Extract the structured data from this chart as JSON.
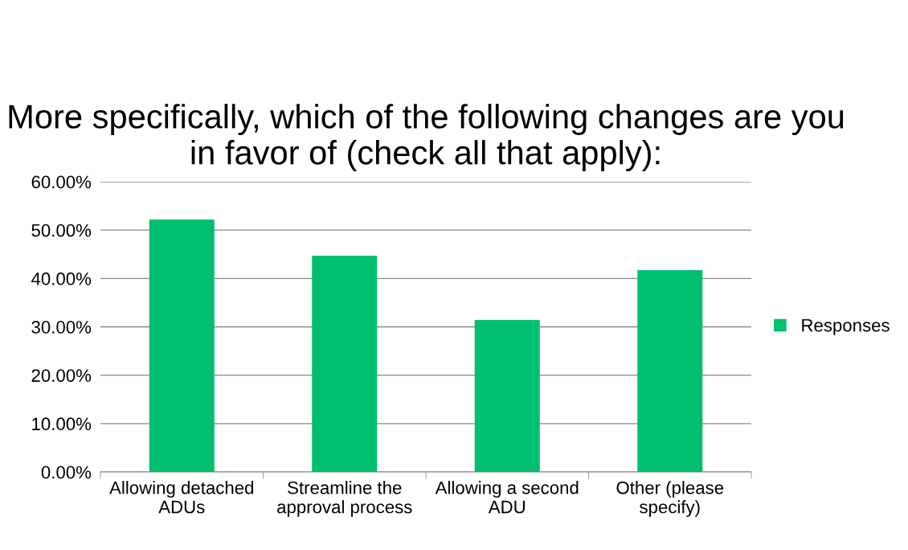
{
  "chart_data": {
    "type": "bar",
    "title": "More specifically, which of the following changes are you in favor of (check all that apply):",
    "categories": [
      "Allowing detached\nADUs",
      "Streamline the\napproval process",
      "Allowing a second\nADU",
      "Other (please\nspecify)"
    ],
    "series": [
      {
        "name": "Responses",
        "color": "#00bf6f",
        "values": [
          52.2,
          44.7,
          31.4,
          41.7
        ]
      }
    ],
    "ylim": [
      0,
      60
    ],
    "yticks": [
      {
        "value": 0,
        "label": "0.00%"
      },
      {
        "value": 10,
        "label": "10.00%"
      },
      {
        "value": 20,
        "label": "20.00%"
      },
      {
        "value": 30,
        "label": "30.00%"
      },
      {
        "value": 40,
        "label": "40.00%"
      },
      {
        "value": 50,
        "label": "50.00%"
      },
      {
        "value": 60,
        "label": "60.00%"
      }
    ],
    "grid": "y",
    "legend": "right"
  }
}
